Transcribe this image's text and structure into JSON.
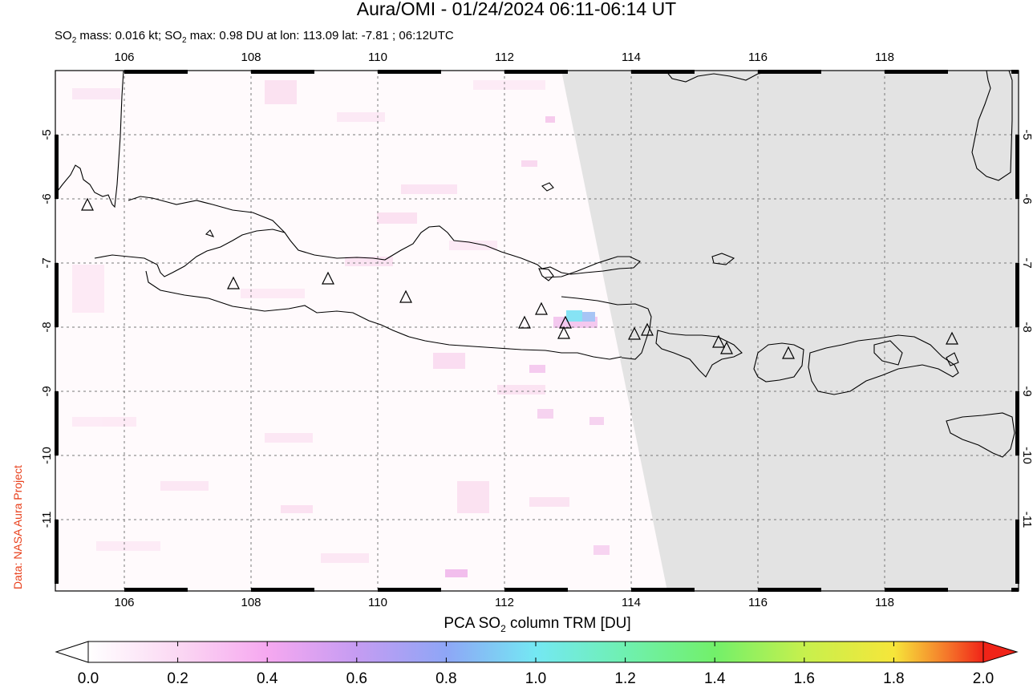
{
  "header": {
    "title": "Aura/OMI - 01/24/2024 06:11-06:14 UT",
    "subtitle_prefix": "SO",
    "subtitle_sub1": "2",
    "subtitle_mid": " mass: 0.016 kt; SO",
    "subtitle_sub2": "2",
    "subtitle_rest": " max: 0.98 DU at lon: 113.09 lat: -7.81 ; 06:12UTC"
  },
  "credit": "Data: NASA Aura Project",
  "map": {
    "lon_ticks": [
      "106",
      "108",
      "110",
      "112",
      "114",
      "116",
      "118"
    ],
    "lat_ticks": [
      "-5",
      "-6",
      "-7",
      "-8",
      "-9",
      "-10",
      "-11"
    ],
    "volcano_count": 14
  },
  "colorbar": {
    "title_prefix": "PCA SO",
    "title_sub": "2",
    "title_rest": " column TRM [DU]",
    "ticks": [
      "0.0",
      "0.2",
      "0.4",
      "0.6",
      "0.8",
      "1.0",
      "1.2",
      "1.4",
      "1.6",
      "1.8",
      "2.0"
    ],
    "colors": [
      "#ffffff",
      "#fbd0f2",
      "#f6a8f0",
      "#c59cf2",
      "#8ea6f6",
      "#74e8f3",
      "#6ff0b0",
      "#72f06a",
      "#c7f04d",
      "#f6e63a",
      "#f5762a",
      "#f02418"
    ]
  }
}
